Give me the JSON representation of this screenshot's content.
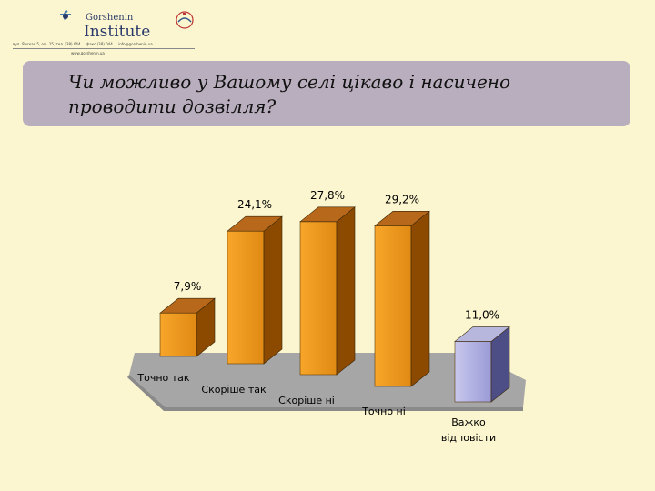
{
  "header": {
    "logo_name": "Gorshenin",
    "logo_institute": "Institute",
    "logo_address": "вул. Ямская 5, оф. 15, тел. (38) 044 ... факс (38) 044 ... info@gorshenin.ua",
    "logo_website": "www.gorshenin.ua"
  },
  "title": {
    "line1": "Чи можливо у Вашому селі цікаво і насичено",
    "line2": "проводити дозвілля?"
  },
  "chart_data": {
    "type": "bar",
    "title": "Чи можливо у Вашому селі цікаво і насичено проводити дозвілля?",
    "categories": [
      "Точно так",
      "Скоріше так",
      "Скоріше ні",
      "Точно ні",
      "Важко відповісти"
    ],
    "values": [
      7.9,
      24.1,
      27.8,
      29.2,
      11.0
    ],
    "value_labels": [
      "7,9%",
      "24,1%",
      "27,8%",
      "29,2%",
      "11,0%"
    ],
    "category_lines": [
      [
        "Точно так"
      ],
      [
        "Скоріше так"
      ],
      [
        "Скоріше ні"
      ],
      [
        "Точно ні"
      ],
      [
        "Важко",
        "відповісти"
      ]
    ],
    "colors": {
      "orange_front": "#e08a14",
      "orange_side": "#8c4a00",
      "orange_top": "#b8681a",
      "blue_front": "#9a9ad6",
      "blue_side": "#4e4e86",
      "blue_top": "#b7b7de",
      "floor": "#a6a6a6"
    },
    "ylim": [
      0,
      30
    ],
    "view": "3d",
    "grid": false,
    "legend": "none"
  }
}
